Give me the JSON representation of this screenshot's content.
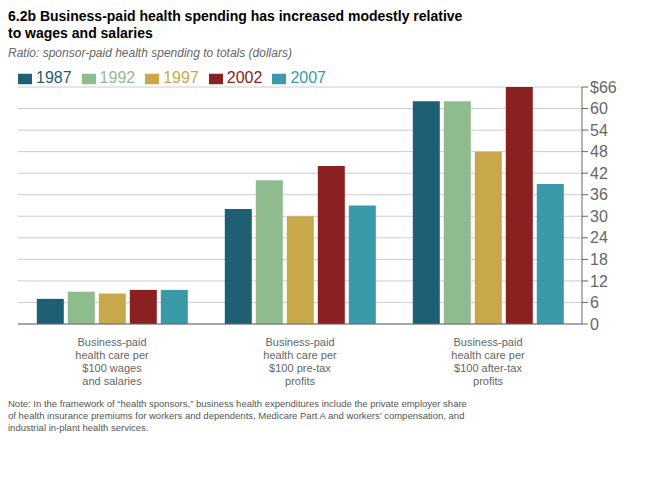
{
  "chart_data": {
    "type": "bar",
    "title": "6.2b Business-paid health spending has increased modestly relative\nto wages and salaries",
    "subtitle": "Ratio: sponsor-paid health spending to totals (dollars)",
    "annotations": [
      "Note: In the framework of “health sponsors,” business health expenditures include the private employer share\nof health insurance premiums for workers and dependents, Medicare Part A and workers’ compensation, and\nindustrial in-plant health services."
    ],
    "categories": [
      "Business-paid\nhealth care per\n$100 wages\nand salaries",
      "Business-paid\nhealth care per\n$100 pre-tax\nprofits",
      "Business-paid\nhealth care per\n$100 after-tax\nprofits"
    ],
    "series": [
      {
        "name": "1987",
        "color": "#1e5f74",
        "values": [
          7.0,
          32.0,
          62.0
        ]
      },
      {
        "name": "1992",
        "color": "#8fbc8f",
        "values": [
          9.0,
          40.0,
          62.0
        ]
      },
      {
        "name": "1997",
        "color": "#c8a84b",
        "values": [
          8.5,
          30.0,
          48.0
        ]
      },
      {
        "name": "2002",
        "color": "#8b2020",
        "values": [
          9.5,
          44.0,
          66.0
        ]
      },
      {
        "name": "2007",
        "color": "#3a9aaa",
        "values": [
          9.5,
          33.0,
          39.0
        ]
      }
    ],
    "ylim": [
      0,
      66
    ],
    "yticks": [
      0,
      6,
      12,
      18,
      24,
      30,
      36,
      42,
      48,
      54,
      60,
      {
        "value": 66,
        "label": "$66"
      }
    ],
    "grid": true,
    "legend": "upper left"
  }
}
